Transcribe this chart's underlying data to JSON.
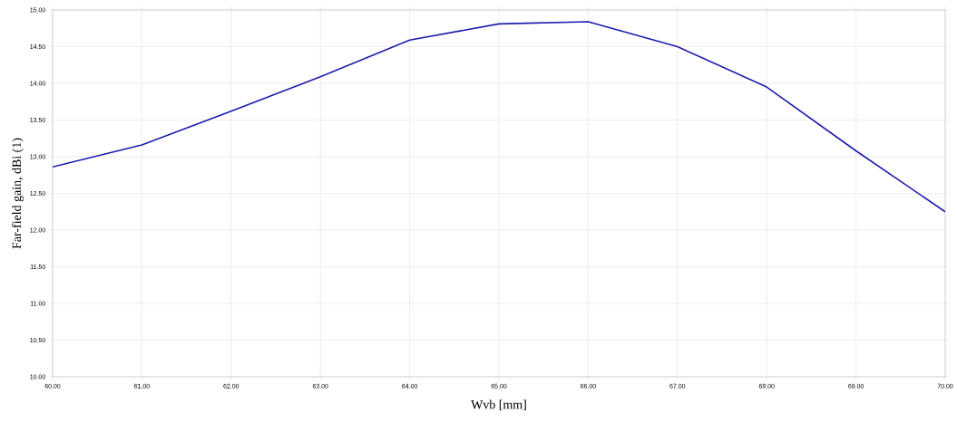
{
  "chart_data": {
    "type": "line",
    "xlabel": "Wvb [mm]",
    "ylabel": "Far-field gain, dBi (1)",
    "x": [
      60,
      61,
      62,
      63,
      64,
      65,
      66,
      67,
      68,
      69,
      70
    ],
    "series": [
      {
        "color": "#1c1cae",
        "values": [
          12.86,
          13.16,
          13.62,
          14.09,
          14.59,
          14.81,
          14.84,
          14.5,
          13.95,
          13.08,
          12.25
        ]
      }
    ],
    "xlim": [
      60,
      70
    ],
    "ylim": [
      10,
      15
    ],
    "xticks": [
      {
        "value": 60,
        "label": "60.00"
      },
      {
        "value": 61,
        "label": "61.00"
      },
      {
        "value": 62,
        "label": "62.00"
      },
      {
        "value": 63,
        "label": "63.00"
      },
      {
        "value": 64,
        "label": "64.00"
      },
      {
        "value": 65,
        "label": "65.00"
      },
      {
        "value": 66,
        "label": "66.00"
      },
      {
        "value": 67,
        "label": "67.00"
      },
      {
        "value": 68,
        "label": "68.00"
      },
      {
        "value": 69,
        "label": "69.00"
      },
      {
        "value": 70,
        "label": "70.00"
      }
    ],
    "yticks": [
      {
        "value": 10,
        "label": "10.00"
      },
      {
        "value": 10.5,
        "label": "10.50"
      },
      {
        "value": 11,
        "label": "11.00"
      },
      {
        "value": 11.5,
        "label": "11.50"
      },
      {
        "value": 12,
        "label": "12.00"
      },
      {
        "value": 12.5,
        "label": "12.50"
      },
      {
        "value": 13,
        "label": "13.00"
      },
      {
        "value": 13.5,
        "label": "13.50"
      },
      {
        "value": 14,
        "label": "14.00"
      },
      {
        "value": 14.5,
        "label": "14.50"
      },
      {
        "value": 15,
        "label": "15.00"
      }
    ],
    "grid": true,
    "marker": "none",
    "line_style": "solid"
  }
}
